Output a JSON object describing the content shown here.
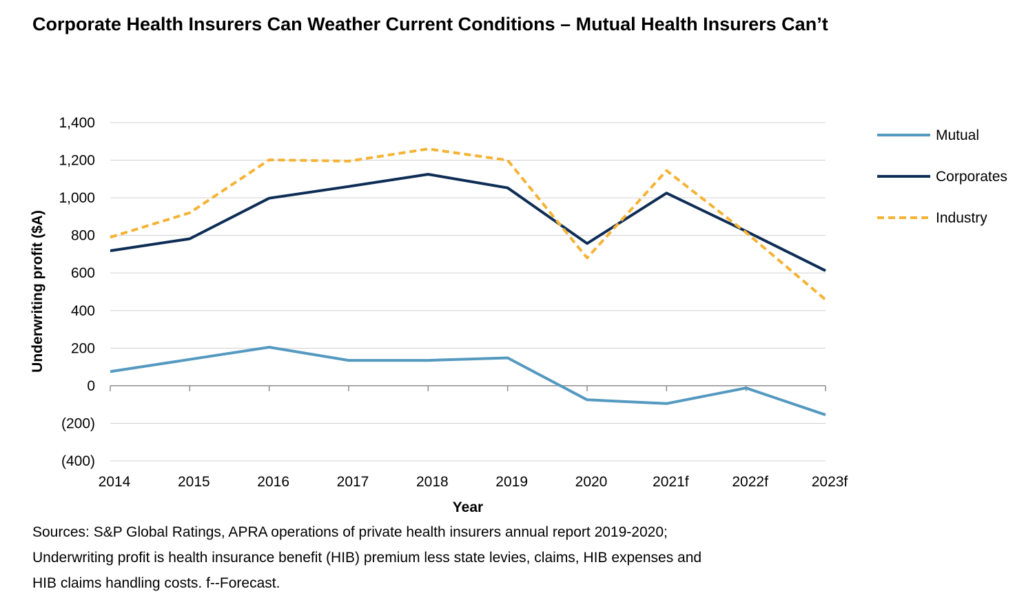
{
  "title": "Corporate Health Insurers Can Weather Current Conditions – Mutual Health Insurers Can’t",
  "sources": [
    "Sources: S&P Global Ratings, APRA operations of private health insurers annual report 2019-2020;",
    "Underwriting profit is health insurance benefit (HIB) premium less state levies, claims, HIB expenses and",
    "HIB claims handling costs. f--Forecast."
  ],
  "chart_data": {
    "type": "line",
    "title": "Corporate Health Insurers Can Weather Current Conditions – Mutual Health Insurers Can’t",
    "xlabel": "Year",
    "ylabel": "Underwriting profit ($A)",
    "ylim": [
      -400,
      1400
    ],
    "yticks": [
      1400,
      1200,
      1000,
      800,
      600,
      400,
      200,
      0,
      -200,
      -400
    ],
    "ytick_labels": [
      "1,400",
      "1,200",
      "1,000",
      "800",
      "600",
      "400",
      "200",
      "0",
      "(200)",
      "(400)"
    ],
    "categories": [
      "2014",
      "2015",
      "2016",
      "2017",
      "2018",
      "2019",
      "2020",
      "2021f",
      "2022f",
      "2023f"
    ],
    "grid": "horizontal",
    "legend_position": "right",
    "series": [
      {
        "name": "Mutual",
        "color": "#5499C0",
        "style": "solid",
        "values": [
          75,
          140,
          205,
          135,
          135,
          148,
          -75,
          -95,
          -12,
          -155
        ]
      },
      {
        "name": "Corporates",
        "color": "#0E2D55",
        "style": "solid",
        "values": [
          718,
          782,
          998,
          1060,
          1125,
          1053,
          757,
          1025,
          822,
          612
        ]
      },
      {
        "name": "Industry",
        "color": "#F5B335",
        "style": "dashed",
        "values": [
          790,
          920,
          1202,
          1195,
          1260,
          1200,
          680,
          1145,
          815,
          458
        ]
      }
    ]
  }
}
